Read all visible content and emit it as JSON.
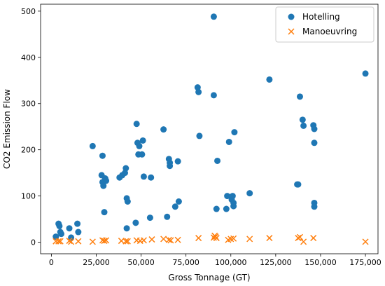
{
  "chart_data": {
    "type": "scatter",
    "xlabel": "Gross Tonnage (GT)",
    "ylabel": "CO2 Emission Flow",
    "xlim": [
      -6000,
      182000
    ],
    "ylim": [
      -25,
      515
    ],
    "xticks": [
      0,
      25000,
      50000,
      75000,
      100000,
      125000,
      150000,
      175000
    ],
    "xtick_labels": [
      "0",
      "25,000",
      "50,000",
      "75,000",
      "100,000",
      "125,000",
      "150,000",
      "175,000"
    ],
    "yticks": [
      0,
      100,
      200,
      300,
      400,
      500
    ],
    "ytick_labels": [
      "0",
      "100",
      "200",
      "300",
      "400",
      "500"
    ],
    "grid": false,
    "legend_position": "top-right",
    "series": [
      {
        "name": "Hotelling",
        "marker": "circle",
        "color": "#1f77b4",
        "points": [
          [
            2500,
            12
          ],
          [
            4000,
            40
          ],
          [
            4500,
            35
          ],
          [
            5000,
            22
          ],
          [
            5500,
            18
          ],
          [
            10000,
            30
          ],
          [
            11000,
            10
          ],
          [
            14500,
            40
          ],
          [
            15000,
            22
          ],
          [
            23000,
            208
          ],
          [
            28000,
            145
          ],
          [
            28500,
            187
          ],
          [
            28500,
            130
          ],
          [
            29000,
            122
          ],
          [
            29500,
            65
          ],
          [
            30000,
            138
          ],
          [
            30500,
            133
          ],
          [
            38000,
            140
          ],
          [
            39500,
            145
          ],
          [
            41000,
            150
          ],
          [
            41500,
            160
          ],
          [
            42000,
            95
          ],
          [
            42500,
            88
          ],
          [
            42000,
            30
          ],
          [
            47000,
            42
          ],
          [
            47500,
            256
          ],
          [
            48000,
            215
          ],
          [
            48500,
            190
          ],
          [
            49000,
            208
          ],
          [
            50500,
            190
          ],
          [
            51000,
            220
          ],
          [
            51500,
            142
          ],
          [
            55000,
            53
          ],
          [
            55500,
            140
          ],
          [
            62500,
            244
          ],
          [
            64500,
            55
          ],
          [
            65500,
            180
          ],
          [
            66000,
            172
          ],
          [
            66000,
            165
          ],
          [
            69000,
            77
          ],
          [
            70500,
            175
          ],
          [
            71000,
            88
          ],
          [
            81500,
            335
          ],
          [
            82000,
            325
          ],
          [
            82500,
            230
          ],
          [
            90500,
            488
          ],
          [
            90500,
            318
          ],
          [
            92000,
            72
          ],
          [
            92500,
            176
          ],
          [
            97500,
            72
          ],
          [
            98000,
            100
          ],
          [
            99000,
            217
          ],
          [
            100500,
            92
          ],
          [
            101000,
            100
          ],
          [
            101500,
            85
          ],
          [
            101500,
            78
          ],
          [
            102000,
            238
          ],
          [
            110500,
            106
          ],
          [
            121500,
            352
          ],
          [
            137000,
            125
          ],
          [
            137500,
            125
          ],
          [
            138500,
            315
          ],
          [
            140000,
            265
          ],
          [
            140500,
            252
          ],
          [
            146000,
            253
          ],
          [
            146500,
            245
          ],
          [
            146500,
            215
          ],
          [
            146500,
            85
          ],
          [
            146500,
            77
          ],
          [
            175000,
            365
          ]
        ]
      },
      {
        "name": "Manoeuvring",
        "marker": "x",
        "color": "#ff7f0e",
        "points": [
          [
            2500,
            2
          ],
          [
            4000,
            2
          ],
          [
            5000,
            2
          ],
          [
            10000,
            3
          ],
          [
            11000,
            1
          ],
          [
            15000,
            2
          ],
          [
            23000,
            1
          ],
          [
            28500,
            4
          ],
          [
            29500,
            3
          ],
          [
            30500,
            4
          ],
          [
            39000,
            3
          ],
          [
            41500,
            2
          ],
          [
            42500,
            2
          ],
          [
            47500,
            4
          ],
          [
            49500,
            3
          ],
          [
            51500,
            4
          ],
          [
            56000,
            6
          ],
          [
            62500,
            7
          ],
          [
            65500,
            5
          ],
          [
            66500,
            4
          ],
          [
            70500,
            5
          ],
          [
            82000,
            9
          ],
          [
            90500,
            10
          ],
          [
            91000,
            14
          ],
          [
            91500,
            12
          ],
          [
            92000,
            9
          ],
          [
            98500,
            5
          ],
          [
            100000,
            7
          ],
          [
            101500,
            8
          ],
          [
            110500,
            7
          ],
          [
            121500,
            9
          ],
          [
            137500,
            9
          ],
          [
            138500,
            11
          ],
          [
            140500,
            1
          ],
          [
            146000,
            9
          ],
          [
            175000,
            1
          ]
        ]
      }
    ]
  }
}
